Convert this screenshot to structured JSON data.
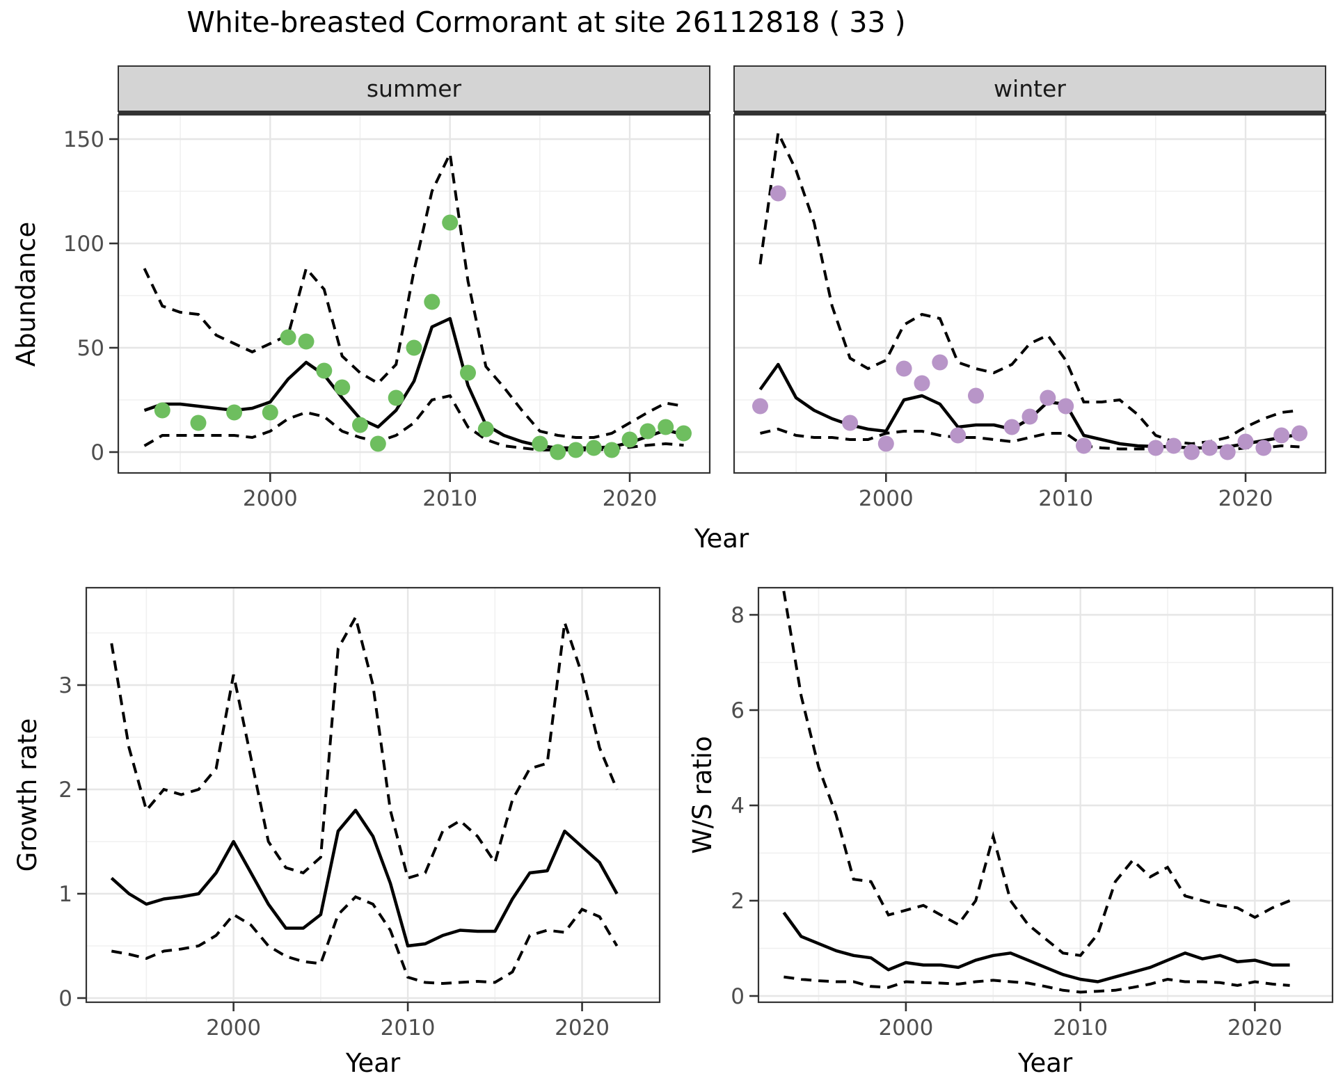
{
  "title": "White-breasted Cormorant at site 26112818 ( 33 )",
  "colors": {
    "summer_point": "#6EBE5F",
    "winter_point": "#B895C8",
    "fit_line": "#000000",
    "ci_line": "#000000",
    "grid_major": "#E6E6E6",
    "grid_minor": "#F0F0F0",
    "panel_border": "#333333",
    "strip_fill": "#D4D4D4",
    "strip_text": "#1A1A1A",
    "tick_label": "#4D4D4D",
    "tick_mark": "#333333",
    "axis_title": "#000000"
  },
  "abundance": {
    "ylabel": "Abundance",
    "xlabel": "Year",
    "yticks": [
      0,
      50,
      100,
      150
    ],
    "yticks_minor": [
      25,
      75,
      125
    ],
    "xticks": [
      2000,
      2010,
      2020
    ],
    "xticks_minor": [
      1995,
      2005,
      2015
    ],
    "xlim": [
      1991.55,
      2024.45
    ],
    "ylim": [
      -10,
      161.7
    ],
    "years": [
      1993,
      1994,
      1995,
      1996,
      1997,
      1998,
      1999,
      2000,
      2001,
      2002,
      2003,
      2004,
      2005,
      2006,
      2007,
      2008,
      2009,
      2010,
      2011,
      2012,
      2013,
      2014,
      2015,
      2016,
      2017,
      2018,
      2019,
      2020,
      2021,
      2022,
      2023
    ],
    "facets": [
      {
        "label": "summer",
        "fit": [
          20,
          23,
          23,
          22,
          21,
          20,
          21,
          24,
          35,
          43,
          37,
          26,
          16,
          12,
          20,
          34,
          60,
          64,
          32,
          13,
          8,
          5,
          3,
          2,
          2,
          2,
          2.5,
          4.5,
          7.5,
          10.5,
          8.5
        ],
        "hi": [
          88,
          70,
          67,
          66,
          56,
          52,
          48,
          52,
          56,
          88,
          78,
          46,
          38,
          33,
          42,
          87,
          125,
          143,
          82,
          41,
          31,
          20,
          10,
          8,
          7,
          7,
          9,
          14,
          19,
          23.5,
          22
        ],
        "lo": [
          3,
          8,
          8,
          8,
          8,
          8,
          7,
          10,
          16,
          19,
          17,
          10,
          7,
          5,
          8,
          14,
          25,
          27,
          12,
          6,
          3,
          2,
          1,
          1,
          1,
          1,
          1.5,
          2.3,
          3.3,
          4,
          3.3
        ],
        "points": [
          [
            1994,
            20
          ],
          [
            1996,
            14
          ],
          [
            1998,
            19
          ],
          [
            2000,
            19
          ],
          [
            2001,
            55
          ],
          [
            2002,
            53
          ],
          [
            2003,
            39
          ],
          [
            2004,
            31
          ],
          [
            2005,
            13
          ],
          [
            2006,
            4
          ],
          [
            2007,
            26
          ],
          [
            2008,
            50
          ],
          [
            2009,
            72
          ],
          [
            2010,
            110
          ],
          [
            2011,
            38
          ],
          [
            2012,
            11
          ],
          [
            2015,
            4
          ],
          [
            2016,
            0
          ],
          [
            2017,
            1
          ],
          [
            2018,
            2
          ],
          [
            2019,
            1
          ],
          [
            2020,
            6
          ],
          [
            2021,
            10
          ],
          [
            2022,
            12
          ],
          [
            2023,
            9
          ]
        ]
      },
      {
        "label": "winter",
        "fit": [
          30,
          42,
          26,
          20,
          16,
          13,
          11,
          10,
          25,
          27,
          23,
          12,
          13,
          13,
          11,
          16,
          24,
          23,
          8,
          6,
          4,
          3,
          2.7,
          2.5,
          2,
          2,
          2.5,
          4,
          5.5,
          7,
          8.5
        ],
        "hi": [
          90,
          153,
          135,
          110,
          70,
          45,
          40,
          44,
          61,
          66,
          64,
          43,
          40,
          38,
          42,
          52,
          56,
          44,
          24,
          24,
          25,
          18,
          8,
          5,
          4,
          5,
          7,
          12,
          16,
          19,
          20
        ],
        "lo": [
          9,
          11,
          8,
          7,
          7,
          6,
          6,
          9,
          10,
          10,
          8,
          7,
          7,
          6,
          5,
          7,
          9,
          9,
          3,
          2,
          1.5,
          1.5,
          1.5,
          1.5,
          1,
          1,
          1,
          2,
          2,
          3,
          2.5
        ],
        "points": [
          [
            1993,
            22
          ],
          [
            1994,
            124
          ],
          [
            1998,
            14
          ],
          [
            2000,
            4
          ],
          [
            2001,
            40
          ],
          [
            2002,
            33
          ],
          [
            2003,
            43
          ],
          [
            2004,
            8
          ],
          [
            2005,
            27
          ],
          [
            2007,
            12
          ],
          [
            2008,
            17
          ],
          [
            2009,
            26
          ],
          [
            2010,
            22
          ],
          [
            2011,
            3
          ],
          [
            2015,
            2
          ],
          [
            2016,
            3
          ],
          [
            2017,
            0
          ],
          [
            2018,
            2
          ],
          [
            2019,
            0
          ],
          [
            2020,
            5
          ],
          [
            2021,
            2
          ],
          [
            2022,
            8
          ],
          [
            2023,
            9
          ]
        ]
      }
    ]
  },
  "growth": {
    "ylabel": "Growth rate",
    "xlabel": "Year",
    "yticks": [
      0,
      1,
      2,
      3
    ],
    "yticks_minor": [
      0.5,
      1.5,
      2.5,
      3.5
    ],
    "xticks": [
      2000,
      2010,
      2020
    ],
    "xticks_minor": [
      1995,
      2005,
      2015
    ],
    "xlim": [
      1991.55,
      2024.45
    ],
    "ylim": [
      -0.04,
      3.93
    ],
    "years": [
      1993,
      1994,
      1995,
      1996,
      1997,
      1998,
      1999,
      2000,
      2001,
      2002,
      2003,
      2004,
      2005,
      2006,
      2007,
      2008,
      2009,
      2010,
      2011,
      2012,
      2013,
      2014,
      2015,
      2016,
      2017,
      2018,
      2019,
      2020,
      2021,
      2022
    ],
    "fit": [
      1.15,
      1.0,
      0.9,
      0.95,
      0.97,
      1.0,
      1.2,
      1.5,
      1.2,
      0.9,
      0.67,
      0.67,
      0.8,
      1.6,
      1.8,
      1.55,
      1.1,
      0.5,
      0.52,
      0.6,
      0.65,
      0.64,
      0.64,
      0.95,
      1.2,
      1.22,
      1.6,
      1.45,
      1.3,
      1.0
    ],
    "hi": [
      3.4,
      2.4,
      1.8,
      2.0,
      1.95,
      2.0,
      2.2,
      3.1,
      2.3,
      1.5,
      1.25,
      1.2,
      1.35,
      3.35,
      3.65,
      3.0,
      1.8,
      1.15,
      1.2,
      1.6,
      1.7,
      1.55,
      1.3,
      1.9,
      2.2,
      2.25,
      3.6,
      3.1,
      2.4,
      2.0
    ],
    "lo": [
      0.45,
      0.42,
      0.38,
      0.45,
      0.47,
      0.5,
      0.6,
      0.8,
      0.7,
      0.5,
      0.4,
      0.35,
      0.33,
      0.8,
      0.97,
      0.9,
      0.65,
      0.2,
      0.15,
      0.14,
      0.15,
      0.16,
      0.15,
      0.25,
      0.6,
      0.65,
      0.63,
      0.85,
      0.78,
      0.5
    ]
  },
  "ws": {
    "ylabel": "W/S ratio",
    "xlabel": "Year",
    "yticks": [
      0,
      2,
      4,
      6,
      8
    ],
    "yticks_minor": [
      1,
      3,
      5,
      7
    ],
    "xticks": [
      2000,
      2010,
      2020
    ],
    "xticks_minor": [
      1995,
      2005,
      2015
    ],
    "xlim": [
      1991.55,
      2024.45
    ],
    "ylim": [
      -0.13,
      8.57
    ],
    "years": [
      1993,
      1994,
      1995,
      1996,
      1997,
      1998,
      1999,
      2000,
      2001,
      2002,
      2003,
      2004,
      2005,
      2006,
      2007,
      2008,
      2009,
      2010,
      2011,
      2012,
      2013,
      2014,
      2015,
      2016,
      2017,
      2018,
      2019,
      2020,
      2021,
      2022
    ],
    "fit": [
      1.75,
      1.25,
      1.1,
      0.95,
      0.85,
      0.8,
      0.55,
      0.7,
      0.65,
      0.65,
      0.6,
      0.75,
      0.85,
      0.9,
      0.75,
      0.6,
      0.45,
      0.35,
      0.3,
      0.4,
      0.5,
      0.6,
      0.75,
      0.9,
      0.78,
      0.85,
      0.72,
      0.75,
      0.65,
      0.65
    ],
    "hi": [
      8.5,
      6.3,
      4.8,
      3.8,
      2.45,
      2.4,
      1.7,
      1.8,
      1.9,
      1.7,
      1.5,
      2.0,
      3.35,
      2.0,
      1.5,
      1.2,
      0.9,
      0.85,
      1.3,
      2.4,
      2.85,
      2.5,
      2.7,
      2.1,
      2.0,
      1.9,
      1.85,
      1.65,
      1.85,
      2.0
    ],
    "lo": [
      0.4,
      0.35,
      0.32,
      0.3,
      0.3,
      0.2,
      0.18,
      0.3,
      0.28,
      0.27,
      0.25,
      0.3,
      0.33,
      0.3,
      0.27,
      0.2,
      0.12,
      0.08,
      0.1,
      0.12,
      0.18,
      0.25,
      0.35,
      0.3,
      0.3,
      0.28,
      0.22,
      0.3,
      0.25,
      0.22
    ]
  },
  "chart_data": {
    "type": "line",
    "note": "Four-panel figure: faceted abundance time series (summer/winter) with fit line, dashed 95% CI bounds and observed points; plus growth-rate and winter/summer-ratio panels. All series are stored under the abundance / growth / ws keys above.",
    "title": "White-breasted Cormorant at site 26112818 ( 33 )",
    "legend_position": "none",
    "grid": "on"
  }
}
